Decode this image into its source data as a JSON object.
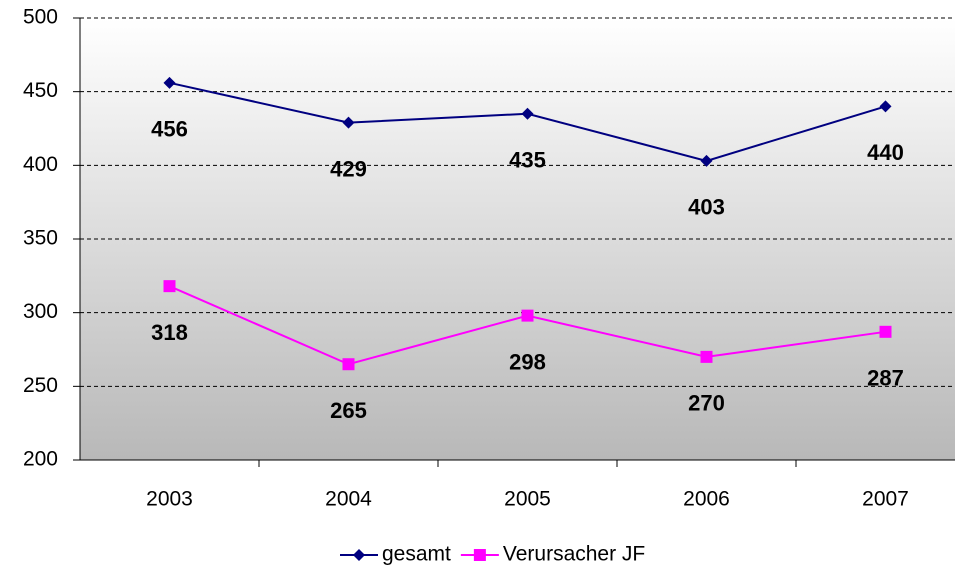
{
  "chart_data": {
    "type": "line",
    "categories": [
      "2003",
      "2004",
      "2005",
      "2006",
      "2007"
    ],
    "series": [
      {
        "name": "gesamt",
        "color": "#000080",
        "marker": "diamond",
        "values": [
          456,
          429,
          435,
          403,
          440
        ]
      },
      {
        "name": "Verursacher JF",
        "color": "#ff00ff",
        "marker": "square",
        "values": [
          318,
          265,
          298,
          270,
          287
        ]
      }
    ],
    "ylim": [
      200,
      500
    ],
    "yticks": [
      200,
      250,
      300,
      350,
      400,
      450,
      500
    ],
    "grid": true,
    "legend": "bottom"
  }
}
